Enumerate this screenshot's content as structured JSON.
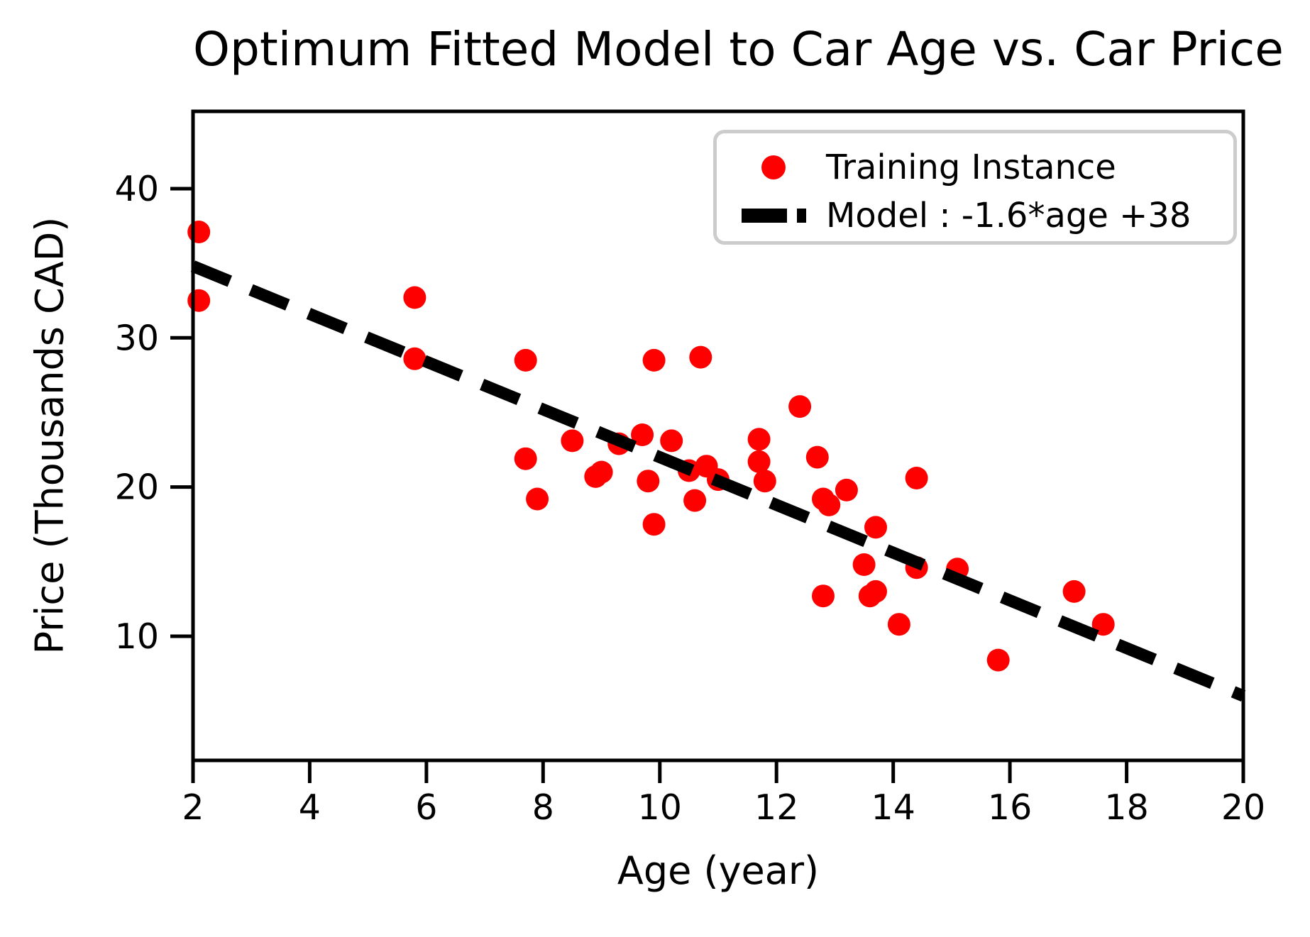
{
  "title": "Optimum Fitted Model to Car Age vs. Car Price",
  "xlabel": "Age (year)",
  "ylabel": "Price (Thousands CAD)",
  "legend": {
    "items": [
      {
        "label": "Training Instance",
        "marker": "red-dot"
      },
      {
        "label": "Model : -1.6*age +38",
        "marker": "black-dashed-line"
      }
    ]
  },
  "colors": {
    "point": "#ff0000",
    "model_line": "#000000",
    "axis": "#000000",
    "legend_border": "#cccccc",
    "background": "#ffffff"
  },
  "chart_data": {
    "type": "scatter",
    "title": "Optimum Fitted Model to Car Age vs. Car Price",
    "xlabel": "Age (year)",
    "ylabel": "Price (Thousands CAD)",
    "xlim": [
      2,
      20
    ],
    "ylim": [
      1.68,
      45.18
    ],
    "x_ticks": [
      2,
      4,
      6,
      8,
      10,
      12,
      14,
      16,
      18,
      20
    ],
    "y_ticks": [
      10,
      20,
      30,
      40
    ],
    "grid": false,
    "legend_position": "upper right",
    "series": [
      {
        "name": "Training Instance",
        "type": "scatter",
        "color": "#ff0000",
        "points": [
          [
            2.1,
            37.1
          ],
          [
            2.1,
            32.5
          ],
          [
            5.8,
            32.7
          ],
          [
            5.8,
            28.6
          ],
          [
            7.7,
            28.5
          ],
          [
            7.7,
            21.9
          ],
          [
            7.9,
            19.2
          ],
          [
            8.5,
            23.1
          ],
          [
            8.9,
            20.7
          ],
          [
            9.0,
            21.0
          ],
          [
            9.3,
            22.9
          ],
          [
            9.7,
            23.5
          ],
          [
            9.8,
            20.4
          ],
          [
            9.9,
            28.5
          ],
          [
            9.9,
            17.5
          ],
          [
            10.2,
            23.1
          ],
          [
            10.5,
            21.1
          ],
          [
            10.6,
            19.1
          ],
          [
            10.7,
            28.7
          ],
          [
            10.8,
            21.4
          ],
          [
            11.0,
            20.5
          ],
          [
            11.7,
            23.2
          ],
          [
            11.7,
            21.7
          ],
          [
            11.8,
            20.4
          ],
          [
            12.4,
            25.4
          ],
          [
            12.7,
            22.0
          ],
          [
            12.8,
            19.2
          ],
          [
            12.9,
            18.8
          ],
          [
            12.8,
            12.7
          ],
          [
            13.2,
            19.8
          ],
          [
            13.5,
            14.8
          ],
          [
            13.6,
            12.7
          ],
          [
            13.7,
            13.0
          ],
          [
            13.7,
            17.3
          ],
          [
            14.1,
            10.8
          ],
          [
            14.4,
            20.6
          ],
          [
            14.4,
            14.6
          ],
          [
            15.1,
            14.5
          ],
          [
            15.8,
            8.4
          ],
          [
            17.1,
            13.0
          ],
          [
            17.6,
            10.8
          ]
        ]
      },
      {
        "name": "Model : -1.6*age +38",
        "type": "line",
        "style": "dashed",
        "color": "#000000",
        "slope": -1.6,
        "intercept": 38,
        "x_range": [
          2,
          20
        ]
      }
    ]
  }
}
